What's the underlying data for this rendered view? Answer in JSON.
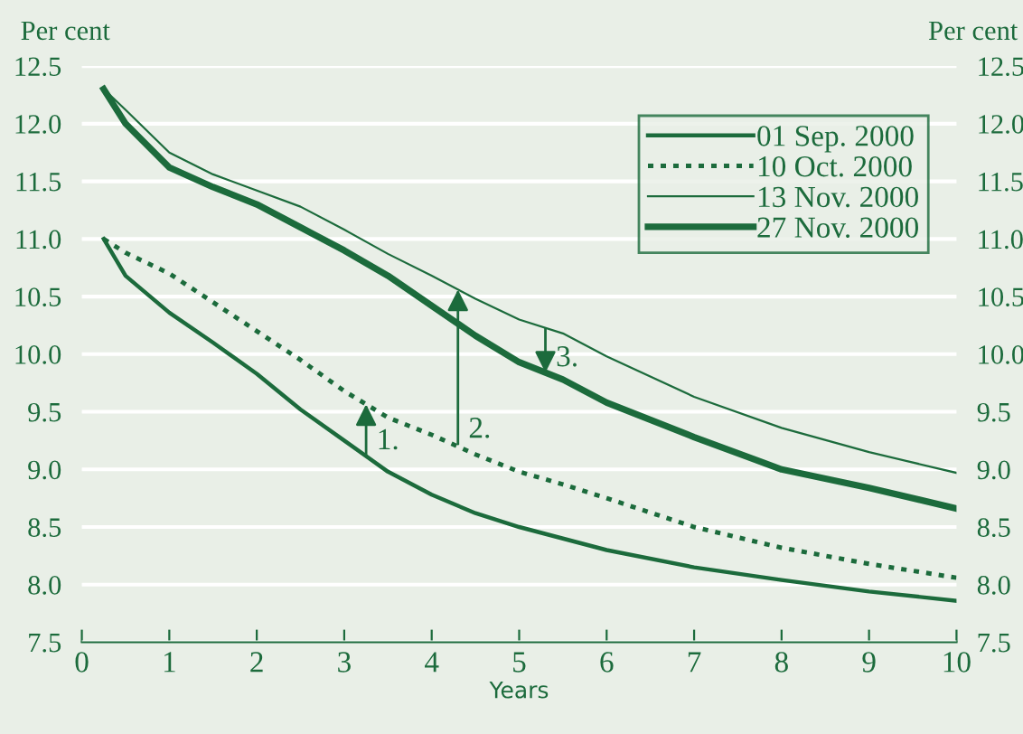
{
  "chart_data": {
    "type": "line",
    "xlabel": "Years",
    "ylabel": "Per cent",
    "y2label": "Per cent",
    "x": [
      0.25,
      0.5,
      1,
      1.5,
      2,
      2.5,
      3,
      3.5,
      4,
      4.5,
      5,
      5.5,
      6,
      7,
      8,
      9,
      10
    ],
    "series": [
      {
        "name": "01 Sep. 2000",
        "color": "#1c6b3c",
        "line_style": "solid",
        "values": [
          11.0,
          10.68,
          10.36,
          10.1,
          9.83,
          9.52,
          9.25,
          8.98,
          8.78,
          8.62,
          8.5,
          8.4,
          8.3,
          8.15,
          8.04,
          7.94,
          7.86
        ]
      },
      {
        "name": "10 Oct. 2000",
        "color": "#1c6b3c",
        "line_style": "dotted",
        "values": [
          11.0,
          10.88,
          10.7,
          10.45,
          10.2,
          9.95,
          9.68,
          9.45,
          9.3,
          9.13,
          8.98,
          8.87,
          8.75,
          8.5,
          8.32,
          8.18,
          8.06
        ]
      },
      {
        "name": "13 Nov. 2000",
        "color": "#1c6b3c",
        "line_style": "solid",
        "values": [
          12.3,
          12.12,
          11.75,
          11.56,
          11.42,
          11.28,
          11.08,
          10.87,
          10.68,
          10.48,
          10.3,
          10.18,
          9.98,
          9.63,
          9.36,
          9.15,
          8.97
        ]
      },
      {
        "name": "27 Nov. 2000",
        "color": "#1c6b3c",
        "line_style": "solid",
        "values": [
          12.3,
          12.0,
          11.62,
          11.45,
          11.3,
          11.1,
          10.9,
          10.68,
          10.42,
          10.16,
          9.93,
          9.78,
          9.58,
          9.28,
          9.0,
          8.84,
          8.66
        ]
      }
    ],
    "annotations": [
      {
        "text": "1.",
        "x": 3.25,
        "y": 9.12
      },
      {
        "text": "2.",
        "x": 4.3,
        "y": 9.22
      },
      {
        "text": "3.",
        "x": 5.3,
        "y": 10.22
      }
    ],
    "xlim": [
      0,
      10
    ],
    "xticks": [
      0,
      1,
      2,
      3,
      4,
      5,
      6,
      7,
      8,
      9,
      10
    ],
    "ylim": [
      7.5,
      12.5
    ],
    "yticks": [
      {
        "value": 7.5,
        "label": "7.5"
      },
      {
        "value": 8,
        "label": "8.0"
      },
      {
        "value": 8.5,
        "label": "8.5"
      },
      {
        "value": 9,
        "label": "9.0"
      },
      {
        "value": 9.5,
        "label": "9.5"
      },
      {
        "value": 10,
        "label": "10.0"
      },
      {
        "value": 10.5,
        "label": "10.5"
      },
      {
        "value": 11,
        "label": "11.0"
      },
      {
        "value": 11.5,
        "label": "11.5"
      },
      {
        "value": 12,
        "label": "12.0"
      },
      {
        "value": 12.5,
        "label": "12.5"
      }
    ],
    "y2lim": [
      7.5,
      12.5
    ],
    "y2ticks": [
      {
        "value": 7.5,
        "label": "7.5"
      },
      {
        "value": 8,
        "label": "8.0"
      },
      {
        "value": 8.5,
        "label": "8.5"
      },
      {
        "value": 9,
        "label": "9.0"
      },
      {
        "value": 9.5,
        "label": "9.5"
      },
      {
        "value": 10,
        "label": "10.0"
      },
      {
        "value": 10.5,
        "label": "10.5"
      },
      {
        "value": 11,
        "label": "11.0"
      },
      {
        "value": 11.5,
        "label": "11.5"
      },
      {
        "value": 12,
        "label": "12.0"
      },
      {
        "value": 12.5,
        "label": "12.5"
      }
    ],
    "grid": "y",
    "legend": "top right",
    "marker": "none"
  }
}
